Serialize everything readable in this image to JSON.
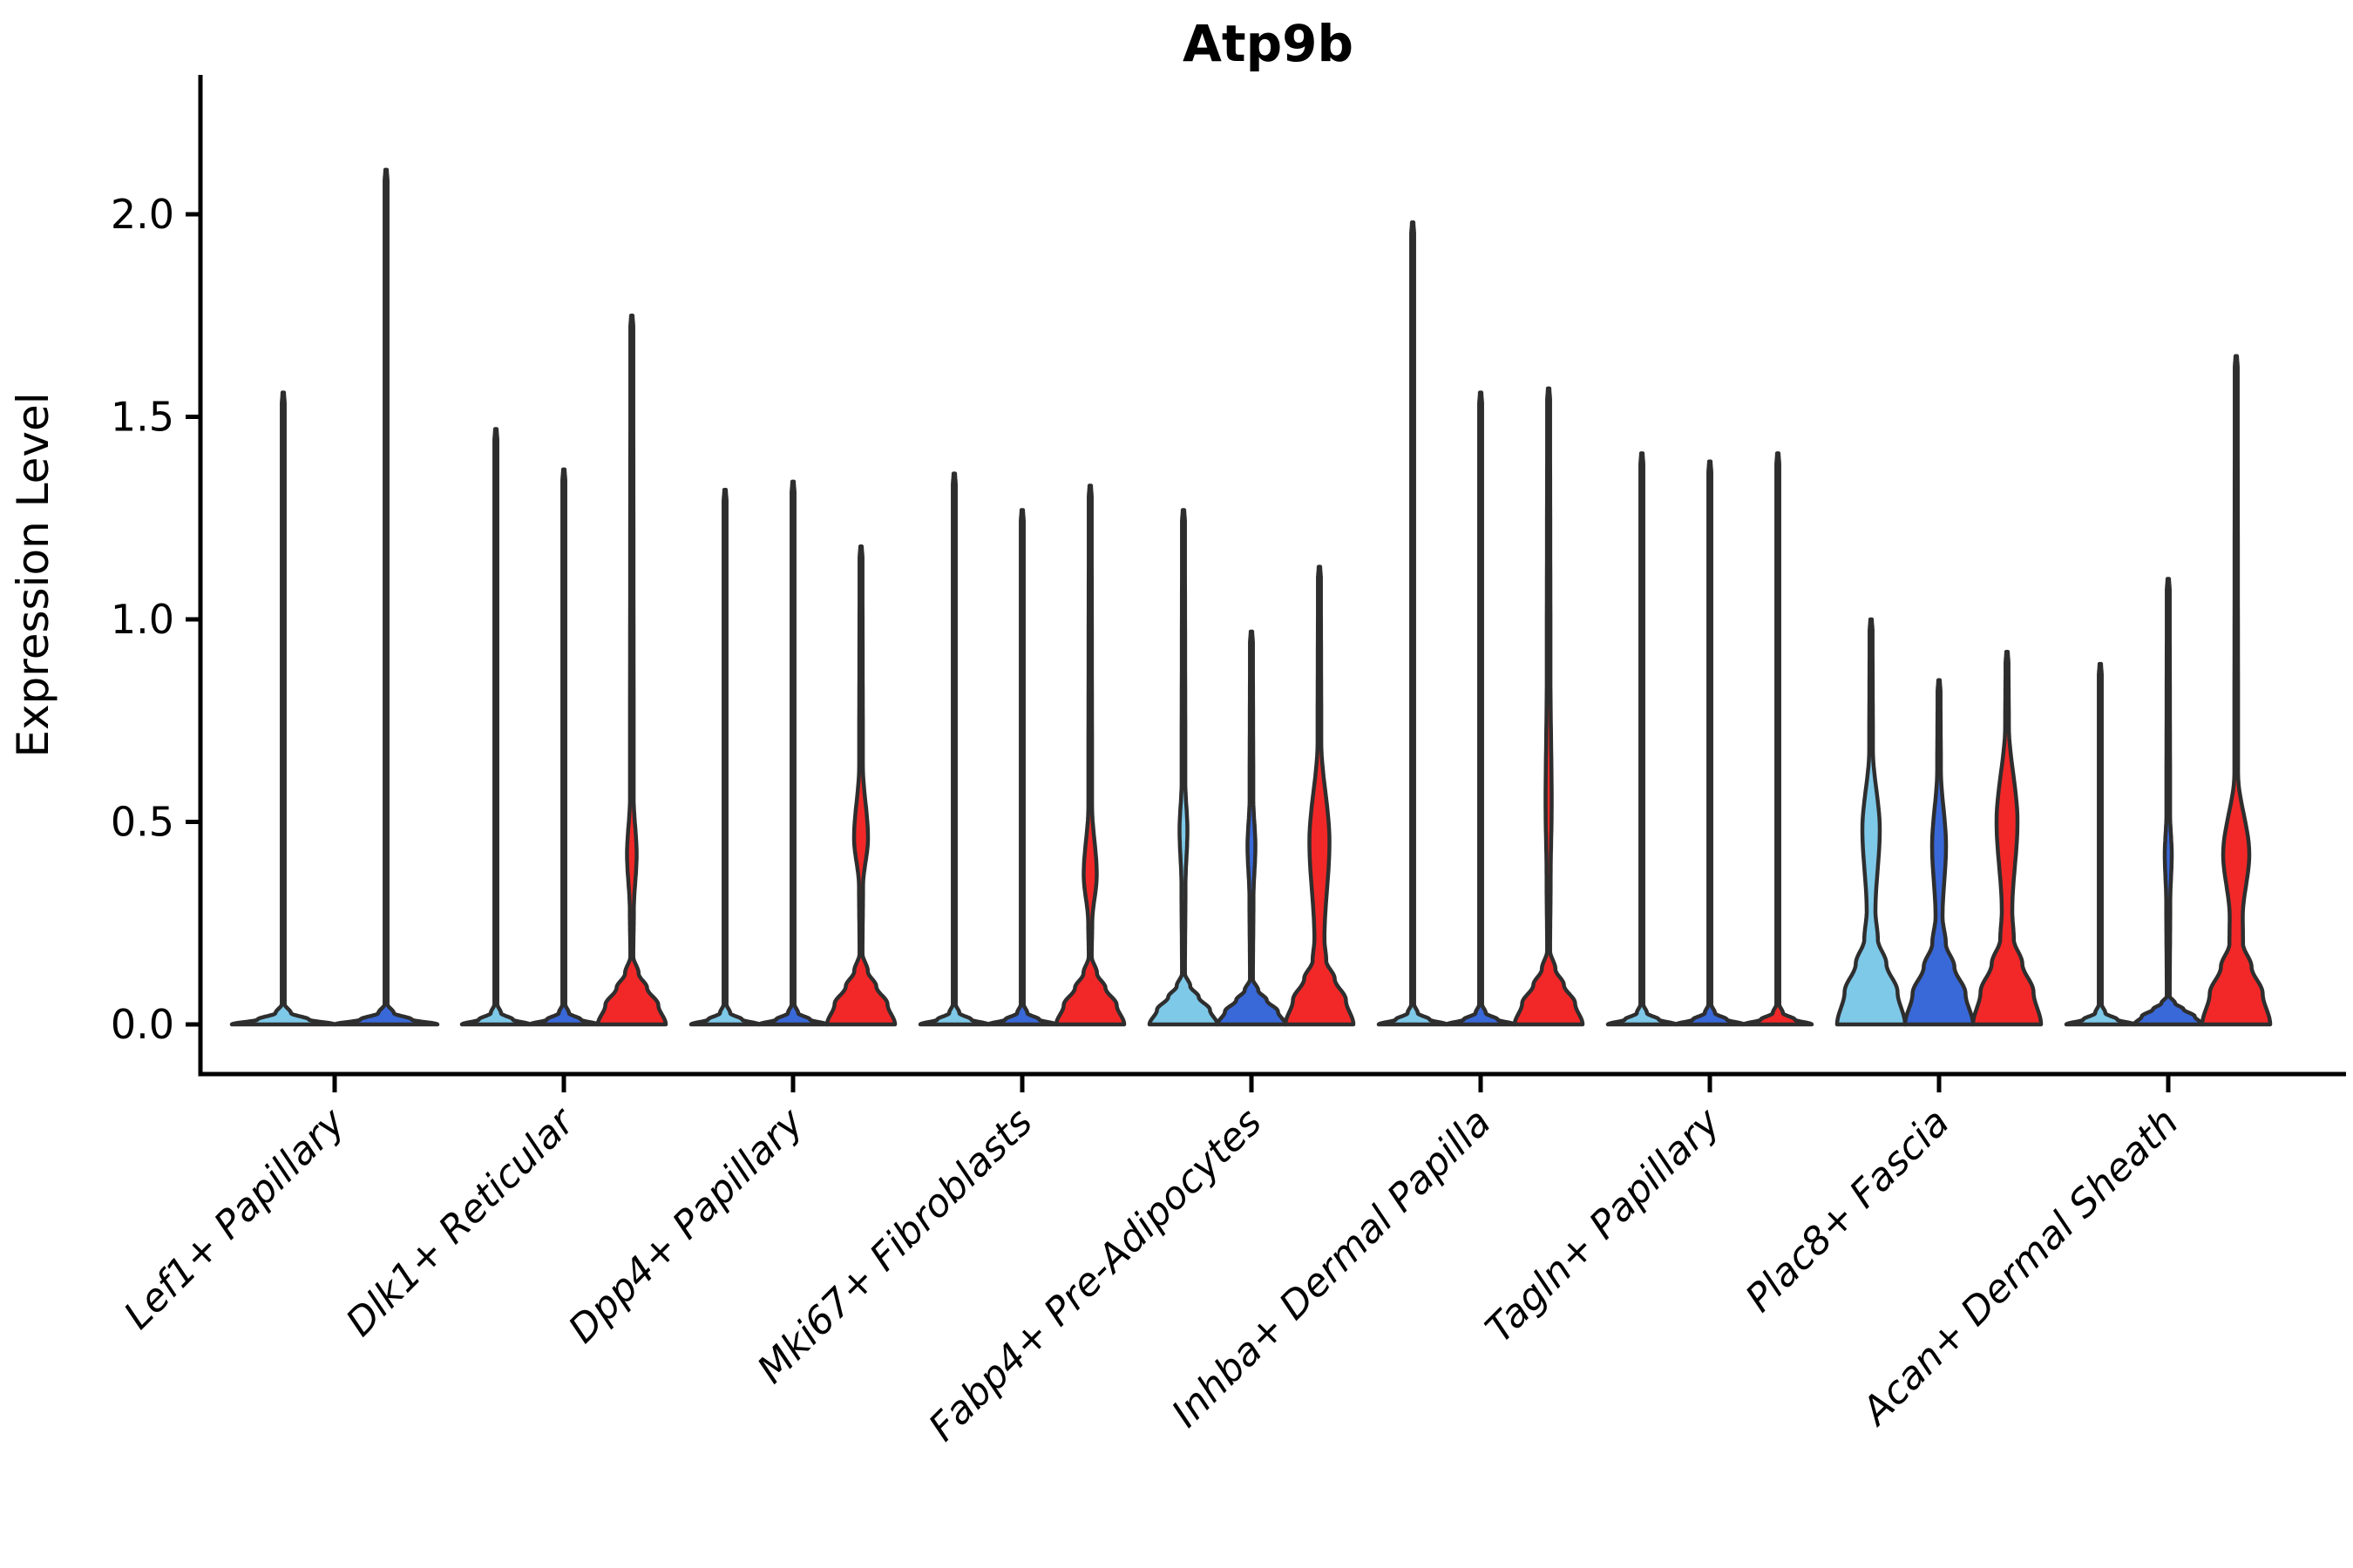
{
  "title": "Atp9b",
  "ylabel": "Expression Level",
  "palette": {
    "series_colors": [
      "#7EC8E8",
      "#3968D8",
      "#F22828"
    ],
    "violin_edge": "#2E2E2E",
    "axis_color": "#000000",
    "background": "#FFFFFF"
  },
  "chart_data": {
    "type": "violin",
    "title": "Atp9b",
    "xlabel": "",
    "ylabel": "Expression Level",
    "ylim": [
      -0.12,
      2.35
    ],
    "grid": false,
    "legend": "none",
    "y_ticks": [
      {
        "value": 0.0,
        "label": "0.0"
      },
      {
        "value": 0.5,
        "label": "0.5"
      },
      {
        "value": 1.0,
        "label": "1.0"
      },
      {
        "value": 1.5,
        "label": "1.5"
      },
      {
        "value": 2.0,
        "label": "2.0"
      }
    ],
    "categories": [
      "Lef1+ Papillary",
      "Dlk1+ Reticular",
      "Dpp4+ Papillary",
      "Mki67+ Fibroblasts",
      "Fabp4+ Pre-Adipocytes",
      "Inhba+ Dermal Papilla",
      "Tagln+ Papillary",
      "Plac8+ Fascia",
      "Acan+ Dermal Sheath"
    ],
    "groups": [
      {
        "label": "Lef1+ Papillary",
        "violins": [
          {
            "color_index": 0,
            "max": 1.56,
            "body_top": 0,
            "bulge": null,
            "base_hw": 59
          },
          {
            "color_index": 1,
            "max": 2.11,
            "body_top": 0,
            "bulge": null,
            "base_hw": 59
          }
        ]
      },
      {
        "label": "Dlk1+ Reticular",
        "violins": [
          {
            "color_index": 0,
            "max": 1.47,
            "body_top": 0,
            "bulge": null
          },
          {
            "color_index": 1,
            "max": 1.37,
            "body_top": 0,
            "bulge": null
          },
          {
            "color_index": 2,
            "max": 1.75,
            "body_top": 0.12,
            "bulge": {
              "from": 0.28,
              "peak": 0.42,
              "to": 0.56,
              "hw": 5.5
            }
          }
        ]
      },
      {
        "label": "Dpp4+ Papillary",
        "violins": [
          {
            "color_index": 0,
            "max": 1.32,
            "body_top": 0,
            "bulge": null
          },
          {
            "color_index": 1,
            "max": 1.34,
            "body_top": 0,
            "bulge": null
          },
          {
            "color_index": 2,
            "max": 1.18,
            "body_top": 0.125,
            "bulge": {
              "from": 0.34,
              "peak": 0.46,
              "to": 0.64,
              "hw": 8
            }
          }
        ]
      },
      {
        "label": "Mki67+ Fibroblasts",
        "violins": [
          {
            "color_index": 0,
            "max": 1.36,
            "body_top": 0,
            "bulge": null
          },
          {
            "color_index": 1,
            "max": 1.27,
            "body_top": 0,
            "bulge": null
          },
          {
            "color_index": 2,
            "max": 1.33,
            "body_top": 0.12,
            "bulge": {
              "from": 0.25,
              "peak": 0.37,
              "to": 0.54,
              "hw": 7.5
            }
          }
        ]
      },
      {
        "label": "Fabp4+ Pre-Adipocytes",
        "violins": [
          {
            "color_index": 0,
            "max": 1.27,
            "body_top": 0.09,
            "bulge": {
              "from": 0.34,
              "peak": 0.48,
              "to": 0.6,
              "hw": 4.5
            }
          },
          {
            "color_index": 1,
            "max": 0.97,
            "body_top": 0.08,
            "bulge": {
              "from": 0.31,
              "peak": 0.44,
              "to": 0.56,
              "hw": 4.5
            }
          },
          {
            "color_index": 2,
            "max": 1.13,
            "body_top": 0.15,
            "bulge": {
              "from": 0.22,
              "peak": 0.45,
              "to": 0.7,
              "hw": 11.5
            }
          }
        ]
      },
      {
        "label": "Inhba+ Dermal Papilla",
        "violins": [
          {
            "color_index": 0,
            "max": 1.98,
            "body_top": 0,
            "bulge": null
          },
          {
            "color_index": 1,
            "max": 1.56,
            "body_top": 0,
            "bulge": null
          },
          {
            "color_index": 2,
            "max": 1.57,
            "body_top": 0.13,
            "bulge": {
              "from": 0.35,
              "peak": 0.55,
              "to": 0.86,
              "hw": 3.5
            }
          }
        ]
      },
      {
        "label": "Tagln+ Papillary",
        "violins": [
          {
            "color_index": 0,
            "max": 1.41,
            "body_top": 0,
            "bulge": null
          },
          {
            "color_index": 1,
            "max": 1.39,
            "body_top": 0,
            "bulge": null
          },
          {
            "color_index": 2,
            "max": 1.41,
            "body_top": 0,
            "bulge": null
          }
        ]
      },
      {
        "label": "Plac8+ Fascia",
        "violins": [
          {
            "color_index": 0,
            "max": 1.0,
            "body_top": 0.2,
            "bulge": {
              "from": 0.24,
              "peak": 0.48,
              "to": 0.68,
              "hw": 10
            }
          },
          {
            "color_index": 1,
            "max": 0.85,
            "body_top": 0.19,
            "bulge": {
              "from": 0.27,
              "peak": 0.44,
              "to": 0.63,
              "hw": 8
            }
          },
          {
            "color_index": 2,
            "max": 0.92,
            "body_top": 0.2,
            "bulge": {
              "from": 0.24,
              "peak": 0.5,
              "to": 0.74,
              "hw": 12
            }
          }
        ]
      },
      {
        "label": "Acan+ Dermal Sheath",
        "violins": [
          {
            "color_index": 0,
            "max": 0.89,
            "body_top": 0,
            "bulge": null
          },
          {
            "color_index": 1,
            "max": 1.1,
            "body_top": 0.05,
            "bulge": {
              "from": 0.3,
              "peak": 0.42,
              "to": 0.52,
              "hw": 4
            }
          },
          {
            "color_index": 2,
            "max": 1.65,
            "body_top": 0.19,
            "bulge": {
              "from": 0.25,
              "peak": 0.42,
              "to": 0.62,
              "hw": 15
            }
          }
        ]
      }
    ]
  }
}
